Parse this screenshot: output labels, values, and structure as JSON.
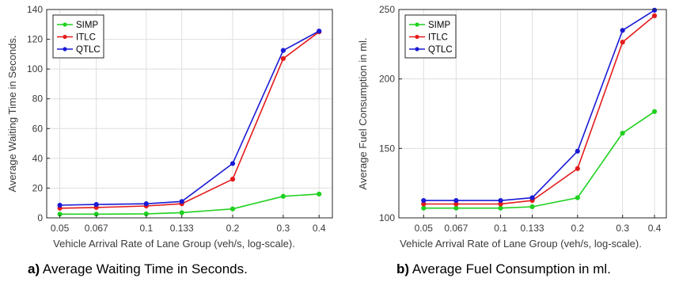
{
  "chart_data": [
    {
      "type": "line",
      "ylabel": "Average Waiting Time in Seconds.",
      "xlabel": "Vehicle Arrival Rate of Lane Group (veh/s, log-scale).",
      "xscale": "log",
      "x": [
        0.05,
        0.067,
        0.1,
        0.133,
        0.2,
        0.3,
        0.4
      ],
      "xticklabels": [
        "0.05",
        "0.067",
        "0.1",
        "0.133",
        "0.2",
        "0.3",
        "0.4"
      ],
      "ylim": [
        0,
        140
      ],
      "yticks": [
        0,
        20,
        40,
        60,
        80,
        100,
        120,
        140
      ],
      "grid": true,
      "legend": "top-left",
      "series": [
        {
          "name": "SIMP",
          "color": "#1fd11f",
          "values": [
            2.5,
            2.5,
            2.7,
            3.5,
            6,
            14.5,
            16
          ]
        },
        {
          "name": "ITLC",
          "color": "#e41a1a",
          "values": [
            6.5,
            7,
            8,
            9.5,
            26,
            107,
            125
          ]
        },
        {
          "name": "QTLC",
          "color": "#1a1ad6",
          "values": [
            8.5,
            9,
            9.5,
            11,
            36.5,
            112.5,
            125.5
          ]
        }
      ],
      "caption_prefix": "a)",
      "caption_text": " Average Waiting Time in Seconds."
    },
    {
      "type": "line",
      "ylabel": "Average Fuel Consumption in ml.",
      "xlabel": "Vehicle Arrival Rate of Lane Group (veh/s, log-scale).",
      "xscale": "log",
      "x": [
        0.05,
        0.067,
        0.1,
        0.133,
        0.2,
        0.3,
        0.4
      ],
      "xticklabels": [
        "0.05",
        "0.067",
        "0.1",
        "0.133",
        "0.2",
        "0.3",
        "0.4"
      ],
      "ylim": [
        100,
        250
      ],
      "yticks": [
        100,
        150,
        200,
        250
      ],
      "grid": true,
      "legend": "top-left",
      "series": [
        {
          "name": "SIMP",
          "color": "#1fd11f",
          "values": [
            107,
            107,
            107,
            108,
            114.5,
            161,
            176.5
          ]
        },
        {
          "name": "ITLC",
          "color": "#e41a1a",
          "values": [
            110,
            110,
            110,
            112.5,
            135.5,
            226.5,
            245.5
          ]
        },
        {
          "name": "QTLC",
          "color": "#1a1ad6",
          "values": [
            112.5,
            112.5,
            112.5,
            114.5,
            148,
            235,
            249.5
          ]
        }
      ],
      "caption_prefix": "b)",
      "caption_text": " Average Fuel Consumption in ml."
    }
  ]
}
